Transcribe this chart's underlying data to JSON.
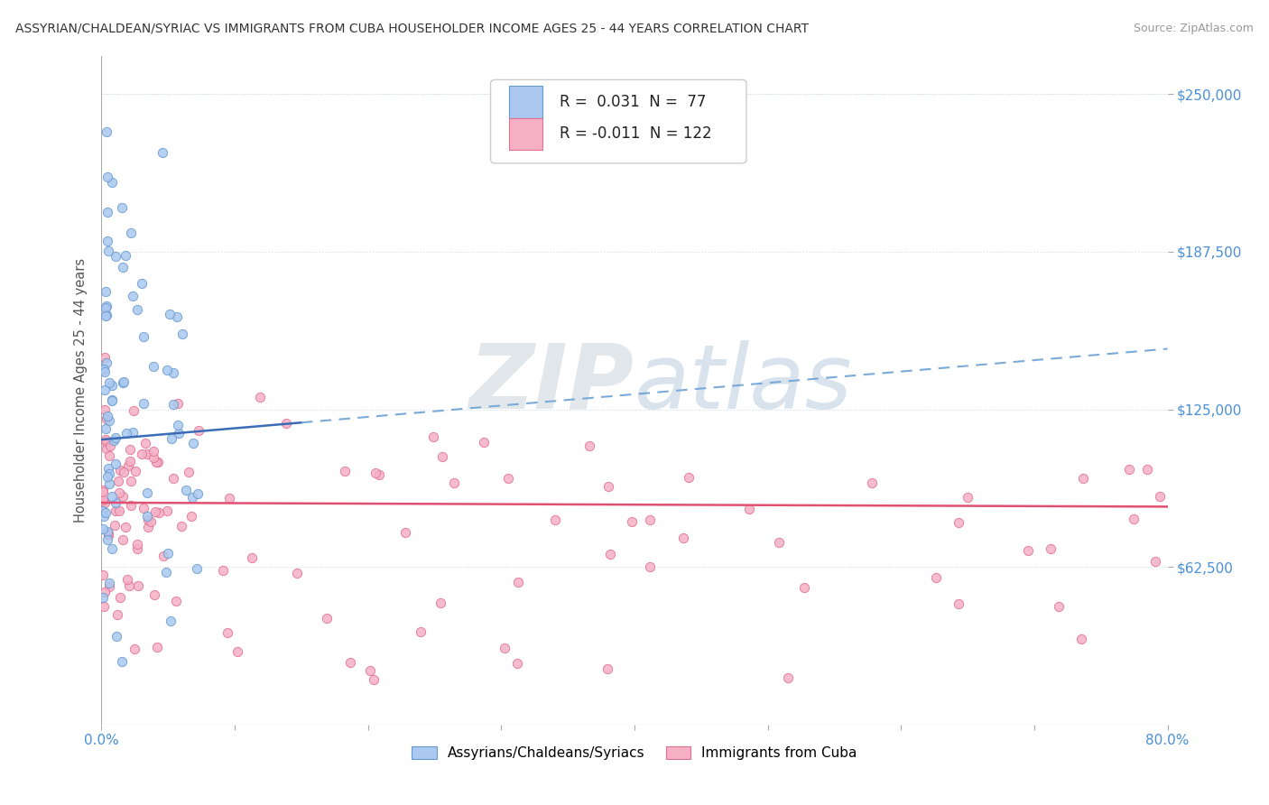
{
  "title": "ASSYRIAN/CHALDEAN/SYRIAC VS IMMIGRANTS FROM CUBA HOUSEHOLDER INCOME AGES 25 - 44 YEARS CORRELATION CHART",
  "source": "Source: ZipAtlas.com",
  "ylabel": "Householder Income Ages 25 - 44 years",
  "xlim": [
    0.0,
    0.8
  ],
  "ylim": [
    0,
    265000
  ],
  "ytick_values": [
    62500,
    125000,
    187500,
    250000
  ],
  "ytick_labels": [
    "$62,500",
    "$125,000",
    "$187,500",
    "$250,000"
  ],
  "series1_label": "Assyrians/Chaldeans/Syriacs",
  "series1_R": "0.031",
  "series1_N": "77",
  "series1_color": "#aac8f0",
  "series1_edge": "#6699cc",
  "series2_label": "Immigrants from Cuba",
  "series2_R": "-0.011",
  "series2_N": "122",
  "series2_color": "#f5b0c5",
  "series2_edge": "#e07090",
  "trend1_color_solid": "#3a6db5",
  "trend1_color_dash": "#7aaad8",
  "trend2_color": "#e05070",
  "watermark": "ZIPAtlas",
  "watermark_color": "#c8d8ea",
  "background": "#ffffff",
  "title_color": "#333333",
  "source_color": "#999999",
  "axis_label_color": "#555555",
  "tick_color": "#4a90d9",
  "grid_color": "#d0dce8"
}
